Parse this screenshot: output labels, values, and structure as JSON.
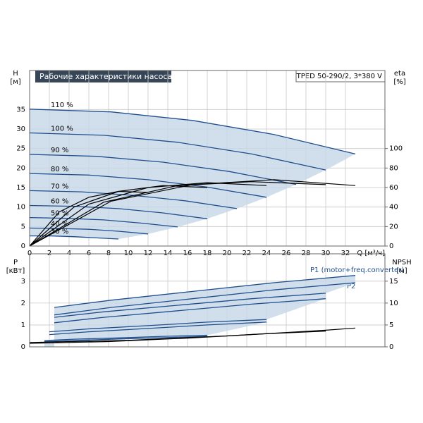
{
  "chart_data": [
    {
      "type": "line",
      "title": "Рабочие характеристики насоса",
      "model": "TPED 50-290/2, 3*380 V",
      "ylabel": "H",
      "yunit": "[м]",
      "y2label": "eta",
      "y2unit": "[%]",
      "xlabel": "Q [м³/ч]",
      "xlim": [
        0,
        36
      ],
      "xticks": [
        0,
        2,
        4,
        6,
        8,
        10,
        12,
        14,
        16,
        18,
        20,
        22,
        24,
        26,
        28,
        30,
        32
      ],
      "ylim": [
        0,
        45
      ],
      "yticks": [
        0,
        5,
        10,
        15,
        20,
        25,
        30,
        35
      ],
      "y2lim": [
        0,
        180
      ],
      "y2ticks": [
        0,
        20,
        40,
        60,
        80,
        100
      ],
      "grid": true,
      "series": [
        {
          "name": "110 %",
          "color": "#1f4e8c",
          "x": [
            0,
            8.25,
            16.5,
            24.75,
            33
          ],
          "values": [
            35.1,
            34.4,
            32.2,
            28.6,
            23.6
          ]
        },
        {
          "name": "100 %",
          "color": "#1f4e8c",
          "x": [
            0,
            7.5,
            15,
            22.5,
            30
          ],
          "values": [
            29,
            28.4,
            26.6,
            23.6,
            19.5
          ]
        },
        {
          "name": "90 %",
          "color": "#1f4e8c",
          "x": [
            0,
            6.75,
            13.5,
            20.25,
            27
          ],
          "values": [
            23.5,
            23.0,
            21.5,
            19.1,
            15.8
          ]
        },
        {
          "name": "80 %",
          "color": "#1f4e8c",
          "x": [
            0,
            6,
            12,
            18,
            24
          ],
          "values": [
            18.6,
            18.2,
            17.0,
            15.1,
            12.5
          ]
        },
        {
          "name": "70 %",
          "color": "#1f4e8c",
          "x": [
            0,
            5.25,
            10.5,
            15.75,
            21
          ],
          "values": [
            14.2,
            13.9,
            13.0,
            11.6,
            9.6
          ]
        },
        {
          "name": "60 %",
          "color": "#1f4e8c",
          "x": [
            0,
            4.5,
            9,
            13.5,
            18
          ],
          "values": [
            10.4,
            10.2,
            9.6,
            8.5,
            7.0
          ]
        },
        {
          "name": "50 %",
          "color": "#1f4e8c",
          "x": [
            0,
            3.75,
            7.5,
            11.25,
            15
          ],
          "values": [
            7.3,
            7.1,
            6.7,
            5.9,
            4.9
          ]
        },
        {
          "name": "40 %",
          "color": "#1f4e8c",
          "x": [
            0,
            3,
            6,
            9,
            12
          ],
          "values": [
            4.6,
            4.5,
            4.3,
            3.8,
            3.1
          ]
        },
        {
          "name": "30 %",
          "color": "#1f4e8c",
          "x": [
            0,
            2.25,
            4.5,
            6.75,
            9
          ],
          "values": [
            2.6,
            2.6,
            2.4,
            2.1,
            1.8
          ]
        },
        {
          "color": "#000000",
          "axis": "y2",
          "x": [
            0,
            8.25,
            16.5,
            24.75,
            33
          ],
          "values": [
            0,
            46,
            63,
            68,
            62
          ]
        },
        {
          "color": "#000000",
          "axis": "y2",
          "x": [
            0,
            7.5,
            15,
            22.5,
            30
          ],
          "values": [
            0,
            45,
            62,
            66,
            63
          ]
        },
        {
          "color": "#000000",
          "axis": "y2",
          "x": [
            0,
            6,
            12,
            18,
            24
          ],
          "values": [
            0,
            43,
            60,
            65,
            62
          ]
        },
        {
          "color": "#000000",
          "axis": "y2",
          "x": [
            0,
            4.5,
            9,
            13.5,
            18
          ],
          "values": [
            0,
            40,
            56,
            62,
            60
          ]
        },
        {
          "color": "#000000",
          "axis": "y2",
          "x": [
            0,
            3,
            6,
            9,
            12
          ],
          "values": [
            0,
            35,
            50,
            56,
            55
          ]
        }
      ]
    },
    {
      "type": "line",
      "ylabel": "P",
      "yunit": "[кВт]",
      "y2label": "NPSH",
      "y2unit": "[м]",
      "p1_label": "P1 (motor+freq.converter)",
      "p2_label": "P2",
      "xlim": [
        0,
        36
      ],
      "ylim": [
        0,
        4.25
      ],
      "yticks": [
        0,
        1,
        2,
        3
      ],
      "y2lim": [
        0,
        21.25
      ],
      "y2ticks": [
        0,
        5,
        10,
        15
      ],
      "grid": true,
      "series": [
        {
          "color": "#1f4e8c",
          "x": [
            2.5,
            8.25,
            16.5,
            24.75,
            33
          ],
          "values": [
            1.8,
            2.13,
            2.53,
            2.93,
            3.26
          ]
        },
        {
          "color": "#1f4e8c",
          "x": [
            2.5,
            8.25,
            16.5,
            24.75,
            33
          ],
          "values": [
            1.46,
            1.8,
            2.2,
            2.6,
            2.93
          ]
        },
        {
          "color": "#1f4e8c",
          "x": [
            2.5,
            7.5,
            15,
            22.5,
            30
          ],
          "values": [
            1.35,
            1.6,
            1.9,
            2.2,
            2.45
          ]
        },
        {
          "color": "#1f4e8c",
          "x": [
            2.5,
            7.5,
            15,
            22.5,
            30
          ],
          "values": [
            1.1,
            1.35,
            1.65,
            1.95,
            2.2
          ]
        },
        {
          "color": "#1f4e8c",
          "x": [
            2,
            6,
            12,
            18,
            24
          ],
          "values": [
            0.69,
            0.82,
            0.97,
            1.13,
            1.25
          ]
        },
        {
          "color": "#1f4e8c",
          "x": [
            2,
            6,
            12,
            18,
            24
          ],
          "values": [
            0.56,
            0.69,
            0.84,
            1.0,
            1.13
          ]
        },
        {
          "color": "#1f4e8c",
          "x": [
            1.5,
            4.5,
            9,
            13.5,
            18
          ],
          "values": [
            0.29,
            0.35,
            0.41,
            0.48,
            0.53
          ]
        },
        {
          "color": "#1f4e8c",
          "x": [
            1.5,
            4.5,
            9,
            13.5,
            18
          ],
          "values": [
            0.24,
            0.29,
            0.36,
            0.42,
            0.48
          ]
        },
        {
          "color": "#000000",
          "axis": "y2",
          "x": [
            0,
            10,
            20,
            30,
            33
          ],
          "values": [
            1.0,
            1.5,
            2.5,
            3.8,
            4.3
          ]
        },
        {
          "color": "#000000",
          "axis": "y2",
          "x": [
            0,
            8,
            16,
            24,
            30
          ],
          "values": [
            0.8,
            1.2,
            2.0,
            3.0,
            3.6
          ]
        }
      ]
    }
  ]
}
